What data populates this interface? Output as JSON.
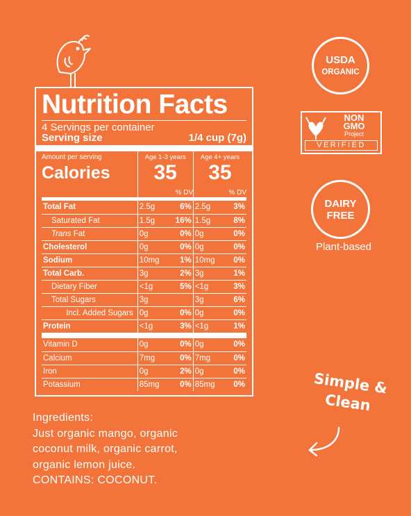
{
  "nutrition": {
    "title": "Nutrition Facts",
    "servings": "4 Servings per container",
    "serving_size_label": "Serving size",
    "serving_size_value": "1/4 cup (7g)",
    "amount_per_serving": "Amount per serving",
    "calories_label": "Calories",
    "col1_header": "Age 1-3 years",
    "col2_header": "Age 4+ years",
    "col1_calories": "35",
    "col2_calories": "35",
    "dv_header": "% DV",
    "rows": [
      {
        "label": "Total Fat",
        "q1": "2.5g",
        "p1": "6%",
        "q2": "2.5g",
        "p2": "3%"
      },
      {
        "label": "Saturated Fat",
        "q1": "1.5g",
        "p1": "16%",
        "q2": "1.5g",
        "p2": "8%"
      },
      {
        "label_italic": "Trans",
        "label": " Fat",
        "q1": "0g",
        "p1": "0%",
        "q2": "0g",
        "p2": "0%"
      },
      {
        "label": "Cholesterol",
        "q1": "0g",
        "p1": "0%",
        "q2": "0g",
        "p2": "0%"
      },
      {
        "label": "Sodium",
        "q1": "10mg",
        "p1": "1%",
        "q2": "10mg",
        "p2": "0%"
      },
      {
        "label": "Total Carb.",
        "q1": "3g",
        "p1": "2%",
        "q2": "3g",
        "p2": "1%"
      },
      {
        "label": "Dietary Fiber",
        "q1": "<1g",
        "p1": "5%",
        "q2": "<1g",
        "p2": "3%"
      },
      {
        "label": "Total Sugars",
        "q1": "3g",
        "p1": "",
        "q2": "3g",
        "p2": "6%"
      },
      {
        "label": "Incl. Added Sugars",
        "q1": "0g",
        "p1": "0%",
        "q2": "0g",
        "p2": "0%"
      },
      {
        "label": "Protein",
        "q1": "<1g",
        "p1": "3%",
        "q2": "<1g",
        "p2": "1%"
      },
      {
        "label": "Vitamin D",
        "q1": "0g",
        "p1": "0%",
        "q2": "0g",
        "p2": "0%"
      },
      {
        "label": "Calcium",
        "q1": "7mg",
        "p1": "0%",
        "q2": "7mg",
        "p2": "0%"
      },
      {
        "label": "Iron",
        "q1": "0g",
        "p1": "2%",
        "q2": "0g",
        "p2": "0%"
      },
      {
        "label": "Potassium",
        "q1": "85mg",
        "p1": "0%",
        "q2": "85mg",
        "p2": "0%"
      }
    ]
  },
  "badges": {
    "usda_line1": "USDA",
    "usda_line2": "ORGANIC",
    "nongmo_line1": "NON",
    "nongmo_line2": "GMO",
    "nongmo_line3": "Project",
    "nongmo_verified": "VERIFIED",
    "dairy_line1": "DAIRY",
    "dairy_line2": "FREE",
    "plant_based": "Plant-based"
  },
  "tagline": {
    "line1": "Simple &",
    "line2": "Clean"
  },
  "ingredients": {
    "heading": "Ingredients:",
    "line1": "Just organic mango, organic",
    "line2": "coconut milk, organic carrot,",
    "line3": "organic lemon juice.",
    "contains": "CONTAINS: COCONUT."
  },
  "colors": {
    "background": "#F2743A",
    "foreground": "#FFFFFF"
  },
  "icons": [
    "bird-icon",
    "usda-organic-seal",
    "non-gmo-butterfly-icon",
    "arrow-icon"
  ]
}
